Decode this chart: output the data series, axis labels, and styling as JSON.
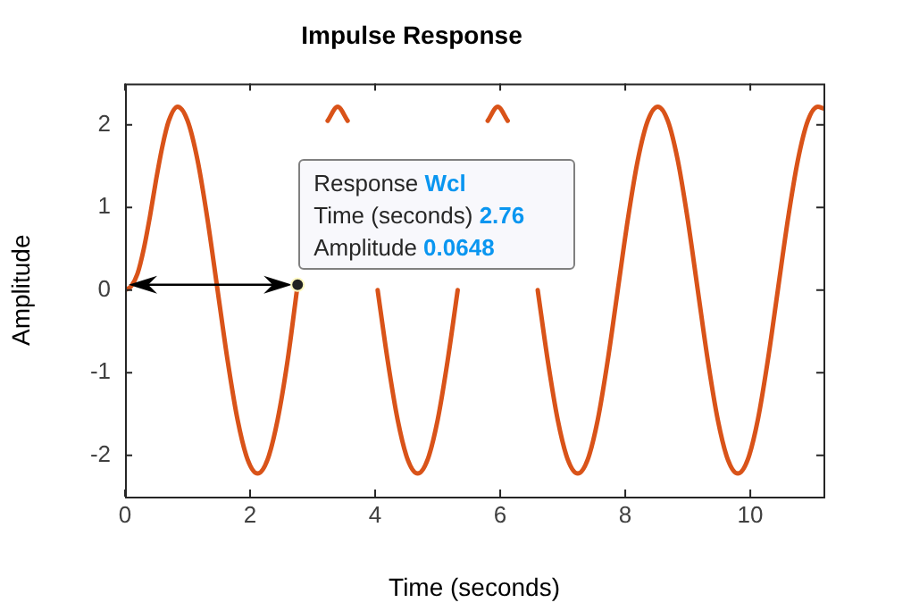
{
  "chart_data": {
    "type": "line",
    "title": "Impulse Response",
    "xlabel": "Time (seconds)",
    "ylabel": "Amplitude",
    "xlim": [
      0,
      11.17
    ],
    "xticks": [
      0,
      2,
      4,
      6,
      8,
      10
    ],
    "ylim": [
      -2.5,
      2.5
    ],
    "yticks": [
      -2,
      -1,
      0,
      1,
      2
    ],
    "grid": false,
    "legend": false,
    "marker": "none",
    "line_style": "solid",
    "annotations": [
      "Response Wcl",
      "Time (seconds) 2.76",
      {
        "text": "Amplitude 0.0648",
        "x": 2.76,
        "y": 0.0648
      }
    ],
    "series": [
      {
        "color": "#d95319",
        "x": [
          0,
          0.1,
          0.2,
          0.3,
          0.4,
          0.5,
          0.6,
          0.7,
          0.84,
          1.0,
          1.16,
          1.32,
          1.48,
          1.64,
          1.8,
          1.96,
          2.12,
          2.28,
          2.44,
          2.6,
          2.76,
          2.92,
          3.08,
          3.24,
          3.4,
          3.56,
          3.72,
          3.88,
          4.04,
          4.2,
          4.36,
          4.52,
          4.68,
          4.84,
          5.0,
          5.16,
          5.32,
          5.48,
          5.64,
          5.8,
          5.96,
          6.12,
          6.28,
          6.44,
          6.6,
          6.76,
          6.92,
          7.08,
          7.24,
          7.4,
          7.56,
          7.72,
          7.88,
          8.04,
          8.2,
          8.36,
          8.52,
          8.68,
          8.84,
          9.0,
          9.16,
          9.32,
          9.48,
          9.64,
          9.8,
          9.96,
          10.12,
          10.28,
          10.44,
          10.6,
          10.76,
          10.92,
          11.08,
          11.17
        ],
        "values": [
          0,
          0.05,
          0.2,
          0.5,
          0.9,
          1.35,
          1.75,
          2.05,
          2.22,
          2.05,
          1.57,
          0.85,
          0,
          -0.85,
          -1.57,
          -2.05,
          -2.22,
          -2.05,
          -1.57,
          -0.85,
          0.0648,
          null,
          null,
          2.05,
          2.22,
          2.05,
          null,
          null,
          0,
          -0.85,
          -1.57,
          -2.05,
          -2.22,
          -2.05,
          -1.57,
          -0.85,
          0,
          null,
          null,
          2.05,
          2.22,
          2.05,
          null,
          null,
          0,
          -0.85,
          -1.57,
          -2.05,
          -2.22,
          -2.05,
          -1.57,
          -0.85,
          0,
          0.85,
          1.57,
          2.05,
          2.22,
          2.05,
          1.57,
          0.85,
          0,
          -0.85,
          -1.57,
          -2.05,
          -2.22,
          -2.05,
          -1.57,
          -0.85,
          0,
          0.85,
          1.57,
          2.05,
          2.22,
          2.2
        ]
      }
    ]
  }
}
